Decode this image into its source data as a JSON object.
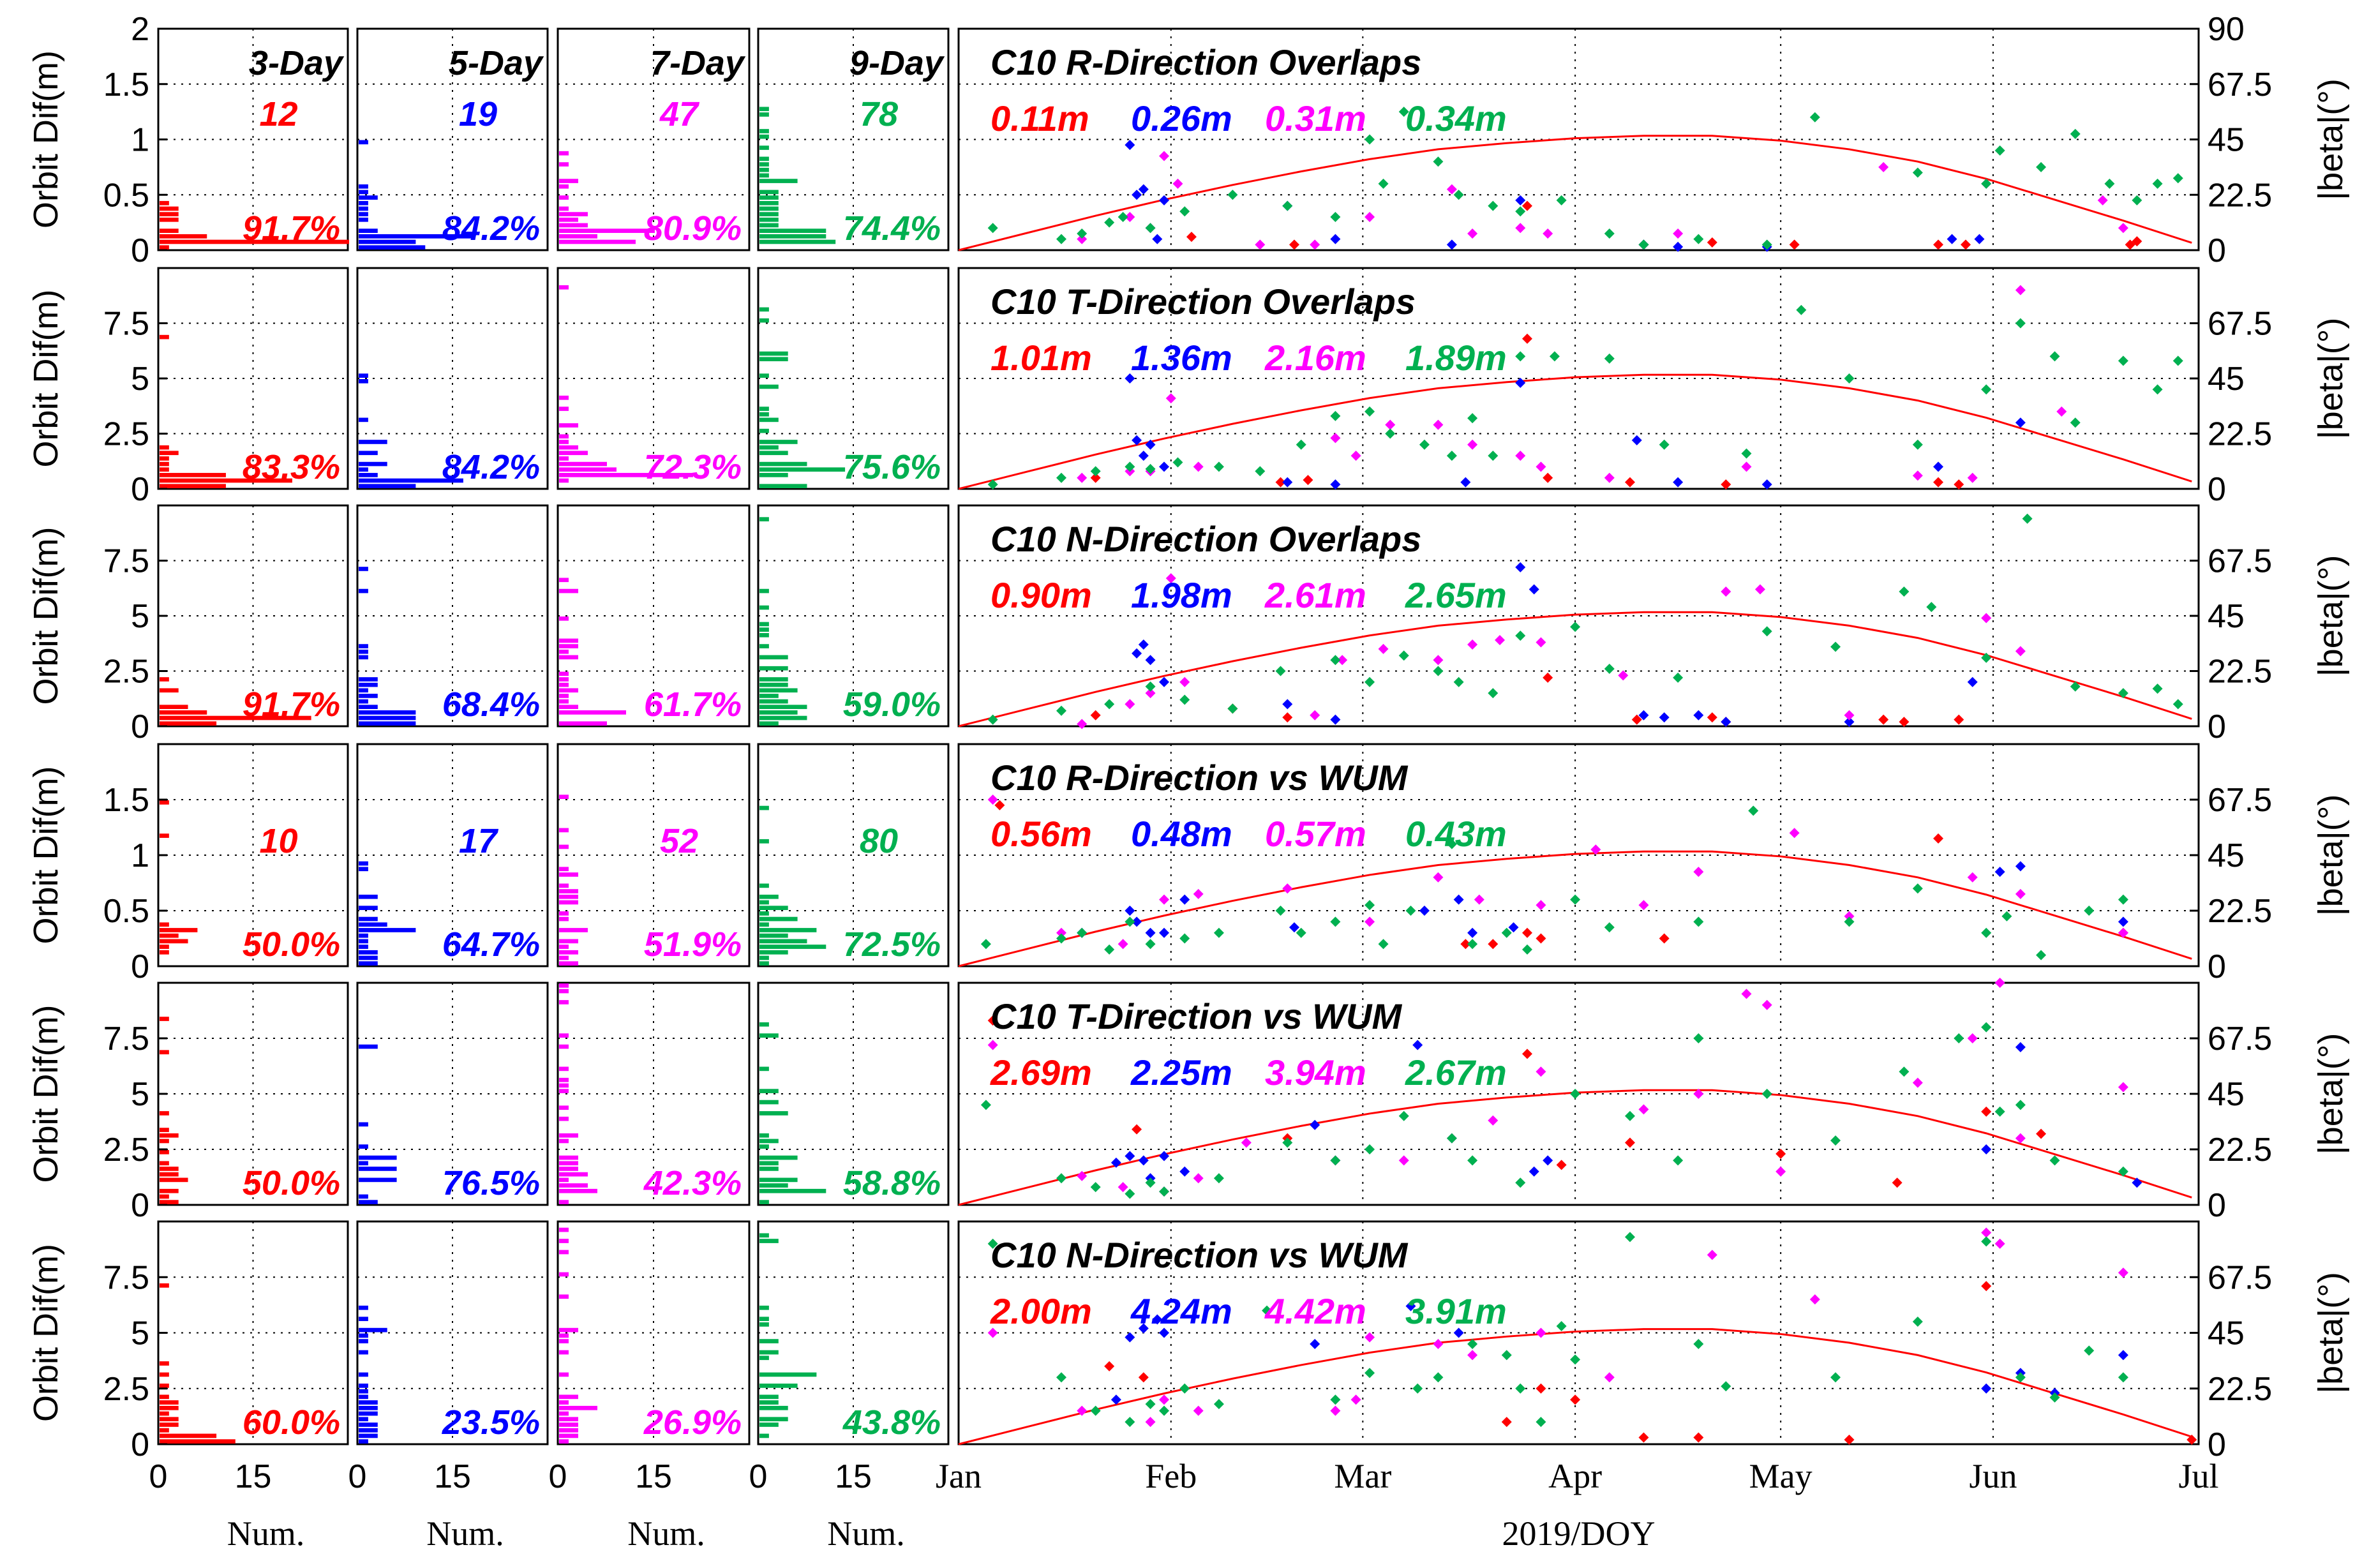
{
  "figure": {
    "ylabel": "Orbit Dif(m)",
    "right_ylabel": "|beta|(°)",
    "hist_xlabel": "Num.",
    "time_xlabel": "2019/DOY",
    "hist_xticks": [
      "0",
      "15"
    ],
    "month_ticks": [
      "Jan",
      "Feb",
      "Mar",
      "Apr",
      "May",
      "Jun",
      "Jul"
    ],
    "beta_ticks": [
      "0",
      "22.5",
      "45",
      "67.5",
      "90"
    ],
    "beta_ticks_short": [
      "0",
      "22.5",
      "45",
      "67.5"
    ],
    "yticks_small": [
      "0",
      "0.5",
      "1",
      "1.5",
      "2"
    ],
    "yticks_small_b": [
      "0",
      "0.5",
      "1",
      "1.5"
    ],
    "yticks_large": [
      "0",
      "2.5",
      "5",
      "7.5"
    ],
    "arc_headers": [
      "3-Day",
      "5-Day",
      "7-Day",
      "9-Day"
    ]
  },
  "colors": {
    "3-Day": "#ff0000",
    "5-Day": "#0000ff",
    "7-Day": "#ff00ff",
    "9-Day": "#00b050",
    "beta_curve": "#ff0000",
    "grid": "#000000"
  },
  "chart_data": [
    {
      "type": "scatter",
      "title": "C10 R-Direction Overlaps",
      "ylim": [
        0,
        2
      ],
      "rms": [
        "0.11m",
        "0.26m",
        "0.31m",
        "0.34m"
      ],
      "counts": [
        "12",
        "19",
        "47",
        "78"
      ],
      "percents": [
        "91.7%",
        "84.2%",
        "80.9%",
        "74.4%"
      ],
      "series": [
        {
          "x": [
            34,
            49,
            83,
            100,
            110,
            122,
            143,
            147,
            171,
            172
          ],
          "y": [
            0.12,
            0.05,
            0.4,
            0.05,
            0.07,
            0.05,
            0.05,
            0.05,
            0.05,
            0.08
          ]
        },
        {
          "x": [
            25,
            26,
            27,
            29,
            30,
            48,
            55,
            72,
            82,
            100,
            105,
            118,
            145,
            149
          ],
          "y": [
            0.95,
            0.5,
            0.55,
            0.1,
            0.45,
            0.4,
            0.1,
            0.05,
            0.45,
            0.05,
            0.03,
            0.03,
            0.1,
            0.1
          ]
        },
        {
          "x": [
            18,
            25,
            28,
            30,
            32,
            44,
            52,
            60,
            72,
            75,
            82,
            86,
            105,
            135,
            150,
            167,
            170
          ],
          "y": [
            0.1,
            0.3,
            0.2,
            0.85,
            0.6,
            0.05,
            0.05,
            0.3,
            0.55,
            0.15,
            0.2,
            0.15,
            0.15,
            0.75,
            0.6,
            0.45,
            0.2
          ]
        },
        {
          "x": [
            5,
            15,
            18,
            22,
            24,
            28,
            33,
            40,
            48,
            55,
            60,
            62,
            65,
            70,
            73,
            78,
            82,
            88,
            95,
            100,
            108,
            118,
            125,
            140,
            150,
            152,
            158,
            163,
            168,
            172,
            175,
            178
          ],
          "y": [
            0.2,
            0.1,
            0.15,
            0.25,
            0.3,
            0.2,
            0.35,
            0.5,
            0.4,
            0.3,
            1.0,
            0.6,
            1.25,
            0.8,
            0.5,
            0.4,
            0.35,
            0.45,
            0.15,
            0.05,
            0.1,
            0.05,
            1.2,
            0.7,
            0.6,
            0.9,
            0.75,
            1.05,
            0.6,
            0.45,
            0.6,
            0.65
          ]
        }
      ]
    },
    {
      "type": "scatter",
      "title": "C10 T-Direction Overlaps",
      "ylim": [
        0,
        10
      ],
      "rms": [
        "1.01m",
        "1.36m",
        "2.16m",
        "1.89m"
      ],
      "counts": [],
      "percents": [
        "83.3%",
        "84.2%",
        "72.3%",
        "75.6%"
      ],
      "series": [
        {
          "x": [
            20,
            47,
            51,
            83,
            86,
            98,
            112,
            143,
            146
          ],
          "y": [
            0.5,
            0.3,
            0.4,
            6.8,
            0.5,
            0.3,
            0.2,
            0.3,
            0.2
          ]
        },
        {
          "x": [
            25,
            26,
            27,
            28,
            30,
            48,
            55,
            74,
            82,
            99,
            105,
            118,
            143,
            155
          ],
          "y": [
            5.0,
            2.2,
            1.5,
            2.0,
            1.0,
            0.3,
            0.2,
            0.3,
            4.8,
            2.2,
            0.3,
            0.2,
            1.0,
            3.0
          ]
        },
        {
          "x": [
            18,
            25,
            28,
            31,
            35,
            55,
            58,
            63,
            70,
            75,
            82,
            85,
            95,
            115,
            140,
            148,
            155,
            161
          ],
          "y": [
            0.5,
            0.8,
            0.8,
            4.1,
            1.0,
            2.3,
            1.5,
            2.9,
            2.9,
            2.0,
            1.5,
            1.0,
            0.5,
            1.0,
            0.6,
            0.5,
            9.0,
            3.5
          ]
        },
        {
          "x": [
            5,
            15,
            20,
            25,
            28,
            32,
            38,
            44,
            50,
            55,
            60,
            63,
            68,
            72,
            75,
            78,
            82,
            87,
            95,
            103,
            115,
            123,
            130,
            140,
            150,
            155,
            160,
            163,
            170,
            175,
            178
          ],
          "y": [
            0.2,
            0.5,
            0.8,
            1.0,
            0.9,
            1.2,
            1.0,
            0.8,
            2.0,
            3.3,
            3.5,
            2.5,
            2.0,
            1.5,
            3.2,
            1.5,
            6.0,
            6.0,
            5.9,
            2.0,
            1.6,
            8.1,
            5.0,
            2.0,
            4.5,
            7.5,
            6.0,
            3.0,
            5.8,
            4.5,
            5.8
          ]
        }
      ]
    },
    {
      "type": "scatter",
      "title": "C10 N-Direction Overlaps",
      "ylim": [
        0,
        10
      ],
      "rms": [
        "0.90m",
        "1.98m",
        "2.61m",
        "2.65m"
      ],
      "counts": [],
      "percents": [
        "91.7%",
        "68.4%",
        "61.7%",
        "59.0%"
      ],
      "series": [
        {
          "x": [
            20,
            40,
            48,
            86,
            99,
            110,
            112,
            135,
            138,
            146
          ],
          "y": [
            0.5,
            0.8,
            0.4,
            2.2,
            0.3,
            0.4,
            0.2,
            0.3,
            0.2,
            0.3
          ]
        },
        {
          "x": [
            26,
            27,
            28,
            30,
            48,
            55,
            82,
            84,
            100,
            103,
            108,
            112,
            130,
            148
          ],
          "y": [
            3.3,
            3.7,
            3.0,
            2.0,
            1.0,
            0.3,
            7.2,
            6.2,
            0.5,
            0.4,
            0.5,
            0.2,
            0.2,
            2.0
          ]
        },
        {
          "x": [
            18,
            25,
            28,
            31,
            33,
            52,
            56,
            62,
            70,
            75,
            79,
            85,
            97,
            112,
            117,
            130,
            150,
            155
          ],
          "y": [
            0.1,
            1.0,
            1.5,
            6.7,
            2.0,
            0.5,
            3.0,
            3.5,
            3.0,
            3.7,
            3.9,
            3.8,
            2.3,
            6.1,
            6.2,
            0.5,
            4.9,
            3.4
          ]
        },
        {
          "x": [
            5,
            15,
            22,
            28,
            33,
            40,
            47,
            55,
            60,
            65,
            70,
            73,
            78,
            82,
            90,
            95,
            105,
            118,
            128,
            138,
            142,
            150,
            156,
            163,
            170,
            175,
            178
          ],
          "y": [
            0.3,
            0.7,
            1.0,
            1.8,
            1.2,
            0.8,
            2.5,
            3.0,
            2.0,
            3.2,
            2.5,
            2.0,
            1.5,
            4.1,
            4.5,
            2.6,
            2.2,
            4.3,
            3.6,
            6.1,
            5.4,
            3.1,
            9.4,
            1.8,
            1.5,
            1.7,
            1.0
          ]
        }
      ]
    },
    {
      "type": "scatter",
      "title": "C10 R-Direction vs WUM",
      "ylim": [
        0,
        2
      ],
      "rms": [
        "0.56m",
        "0.48m",
        "0.57m",
        "0.43m"
      ],
      "counts": [
        "10",
        "17",
        "52",
        "80"
      ],
      "percents": [
        "50.0%",
        "64.7%",
        "51.9%",
        "72.5%"
      ],
      "series": [
        {
          "x": [
            6,
            74,
            78,
            83,
            85,
            103,
            143,
            170
          ],
          "y": [
            1.45,
            0.2,
            0.2,
            0.3,
            0.25,
            0.25,
            1.15,
            0.3
          ]
        },
        {
          "x": [
            18,
            25,
            26,
            28,
            30,
            33,
            49,
            68,
            73,
            75,
            81,
            152,
            155,
            170
          ],
          "y": [
            0.3,
            0.5,
            0.4,
            0.3,
            0.3,
            0.6,
            0.35,
            0.5,
            0.6,
            0.3,
            0.35,
            0.85,
            0.9,
            0.4
          ]
        },
        {
          "x": [
            5,
            15,
            24,
            30,
            35,
            48,
            60,
            70,
            76,
            85,
            93,
            100,
            108,
            122,
            130,
            148,
            155,
            170
          ],
          "y": [
            1.5,
            0.3,
            0.2,
            0.6,
            0.65,
            0.7,
            0.4,
            0.8,
            0.6,
            0.55,
            1.05,
            0.55,
            0.85,
            1.2,
            0.45,
            0.8,
            0.65,
            0.3
          ]
        },
        {
          "x": [
            4,
            15,
            18,
            22,
            25,
            28,
            33,
            38,
            47,
            50,
            55,
            60,
            62,
            66,
            72,
            75,
            80,
            83,
            90,
            95,
            108,
            116,
            130,
            140,
            150,
            153,
            158,
            165,
            170
          ],
          "y": [
            0.2,
            0.25,
            0.3,
            0.15,
            0.4,
            0.2,
            0.25,
            0.3,
            0.5,
            0.3,
            0.4,
            0.55,
            0.2,
            0.5,
            1.1,
            0.2,
            0.3,
            0.15,
            0.6,
            0.35,
            0.4,
            1.4,
            0.4,
            0.7,
            0.3,
            0.45,
            0.1,
            0.5,
            0.6
          ]
        }
      ]
    },
    {
      "type": "scatter",
      "title": "C10 T-Direction vs WUM",
      "ylim": [
        0,
        10
      ],
      "rms": [
        "2.69m",
        "2.25m",
        "3.94m",
        "2.67m"
      ],
      "counts": [],
      "percents": [
        "50.0%",
        "76.5%",
        "42.3%",
        "58.8%"
      ],
      "series": [
        {
          "x": [
            5,
            26,
            48,
            83,
            88,
            98,
            120,
            137,
            150,
            158
          ],
          "y": [
            8.3,
            3.4,
            3.0,
            6.8,
            1.8,
            2.8,
            2.3,
            1.0,
            4.2,
            3.2
          ]
        },
        {
          "x": [
            23,
            25,
            27,
            28,
            30,
            33,
            52,
            67,
            84,
            86,
            150,
            155,
            172
          ],
          "y": [
            1.9,
            2.2,
            2.0,
            1.2,
            2.2,
            1.5,
            3.6,
            7.2,
            1.5,
            2.0,
            2.5,
            7.1,
            1.0
          ]
        },
        {
          "x": [
            5,
            18,
            24,
            30,
            35,
            42,
            55,
            65,
            72,
            78,
            85,
            100,
            108,
            115,
            118,
            120,
            140,
            148,
            152,
            155,
            170
          ],
          "y": [
            7.2,
            1.3,
            0.8,
            0.6,
            1.2,
            2.8,
            2.0,
            2.0,
            3.0,
            3.8,
            6.0,
            4.3,
            5.0,
            9.5,
            9.0,
            1.5,
            5.5,
            7.5,
            10.0,
            3.0,
            5.3
          ]
        },
        {
          "x": [
            4,
            15,
            20,
            25,
            28,
            30,
            38,
            48,
            55,
            60,
            65,
            72,
            75,
            82,
            90,
            98,
            105,
            108,
            118,
            128,
            138,
            146,
            150,
            152,
            155,
            160,
            170
          ],
          "y": [
            4.5,
            1.2,
            0.8,
            0.5,
            1.0,
            0.6,
            1.2,
            2.8,
            2.0,
            2.5,
            4.0,
            3.0,
            2.0,
            1.0,
            5.0,
            4.0,
            2.0,
            7.5,
            5.0,
            2.9,
            6.0,
            7.5,
            8.0,
            4.2,
            4.5,
            2.0,
            1.5
          ]
        }
      ]
    },
    {
      "type": "scatter",
      "title": "C10 N-Direction vs WUM",
      "ylim": [
        0,
        10
      ],
      "rms": [
        "2.00m",
        "4.24m",
        "4.42m",
        "3.91m"
      ],
      "counts": [],
      "percents": [
        "60.0%",
        "23.5%",
        "26.9%",
        "43.8%"
      ],
      "series": [
        {
          "x": [
            22,
            27,
            80,
            85,
            90,
            100,
            108,
            130,
            150,
            180
          ],
          "y": [
            3.5,
            3.0,
            1.0,
            2.5,
            2.0,
            0.3,
            0.3,
            0.2,
            7.1,
            0.2
          ]
        },
        {
          "x": [
            23,
            25,
            27,
            29,
            30,
            52,
            66,
            73,
            150,
            155,
            160,
            170
          ],
          "y": [
            2.0,
            4.8,
            5.2,
            5.6,
            5.0,
            4.5,
            6.2,
            5.0,
            2.5,
            3.2,
            2.3,
            4.0
          ]
        },
        {
          "x": [
            5,
            18,
            28,
            30,
            35,
            55,
            58,
            60,
            70,
            75,
            85,
            95,
            110,
            125,
            150,
            152,
            170
          ],
          "y": [
            5.0,
            1.5,
            1.0,
            2.0,
            1.5,
            1.5,
            2.0,
            4.8,
            4.5,
            4.0,
            5.0,
            3.0,
            8.5,
            6.5,
            9.5,
            9.0,
            7.7
          ]
        },
        {
          "x": [
            5,
            15,
            20,
            25,
            28,
            30,
            33,
            38,
            45,
            55,
            60,
            67,
            70,
            75,
            80,
            82,
            85,
            88,
            90,
            98,
            108,
            112,
            128,
            140,
            150,
            155,
            160,
            165,
            170
          ],
          "y": [
            9.0,
            3.0,
            1.5,
            1.0,
            1.8,
            1.5,
            2.5,
            1.8,
            6.0,
            2.0,
            3.2,
            2.5,
            3.0,
            4.5,
            4.0,
            2.5,
            1.0,
            5.3,
            3.8,
            9.3,
            4.5,
            2.6,
            3.0,
            5.5,
            9.1,
            3.0,
            2.1,
            4.2,
            3.0
          ]
        }
      ]
    }
  ],
  "beta_curve": {
    "x": [
      0,
      10,
      20,
      30,
      40,
      50,
      60,
      70,
      80,
      90,
      100,
      110,
      120,
      130,
      140,
      150,
      160,
      170,
      180
    ],
    "y": [
      0,
      7,
      14,
      20.5,
      26.5,
      32,
      37,
      41,
      43.5,
      45.5,
      46.5,
      46.5,
      44.5,
      41,
      36,
      29,
      20.5,
      12,
      3
    ]
  }
}
